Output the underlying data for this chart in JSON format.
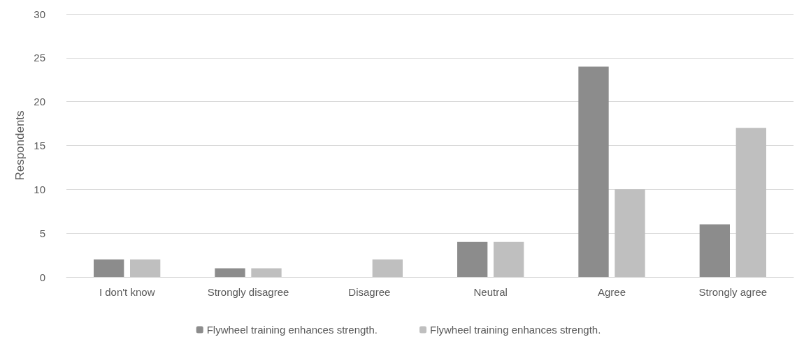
{
  "chart_data": {
    "type": "bar",
    "ylabel": "Respondents",
    "categories": [
      "I don't know",
      "Strongly disagree",
      "Disagree",
      "Neutral",
      "Agree",
      "Strongly agree"
    ],
    "series": [
      {
        "name": "Flywheel training enhances strength.",
        "color": "#8c8c8c",
        "values": [
          2,
          1,
          0,
          4,
          24,
          6
        ]
      },
      {
        "name": "Flywheel training enhances strength.",
        "color": "#bfbfbf",
        "values": [
          2,
          1,
          2,
          4,
          10,
          17
        ]
      }
    ],
    "ylim": [
      0,
      30
    ],
    "yticks": [
      0,
      5,
      10,
      15,
      20,
      25,
      30
    ],
    "grid": "y",
    "legend": "bottom"
  }
}
